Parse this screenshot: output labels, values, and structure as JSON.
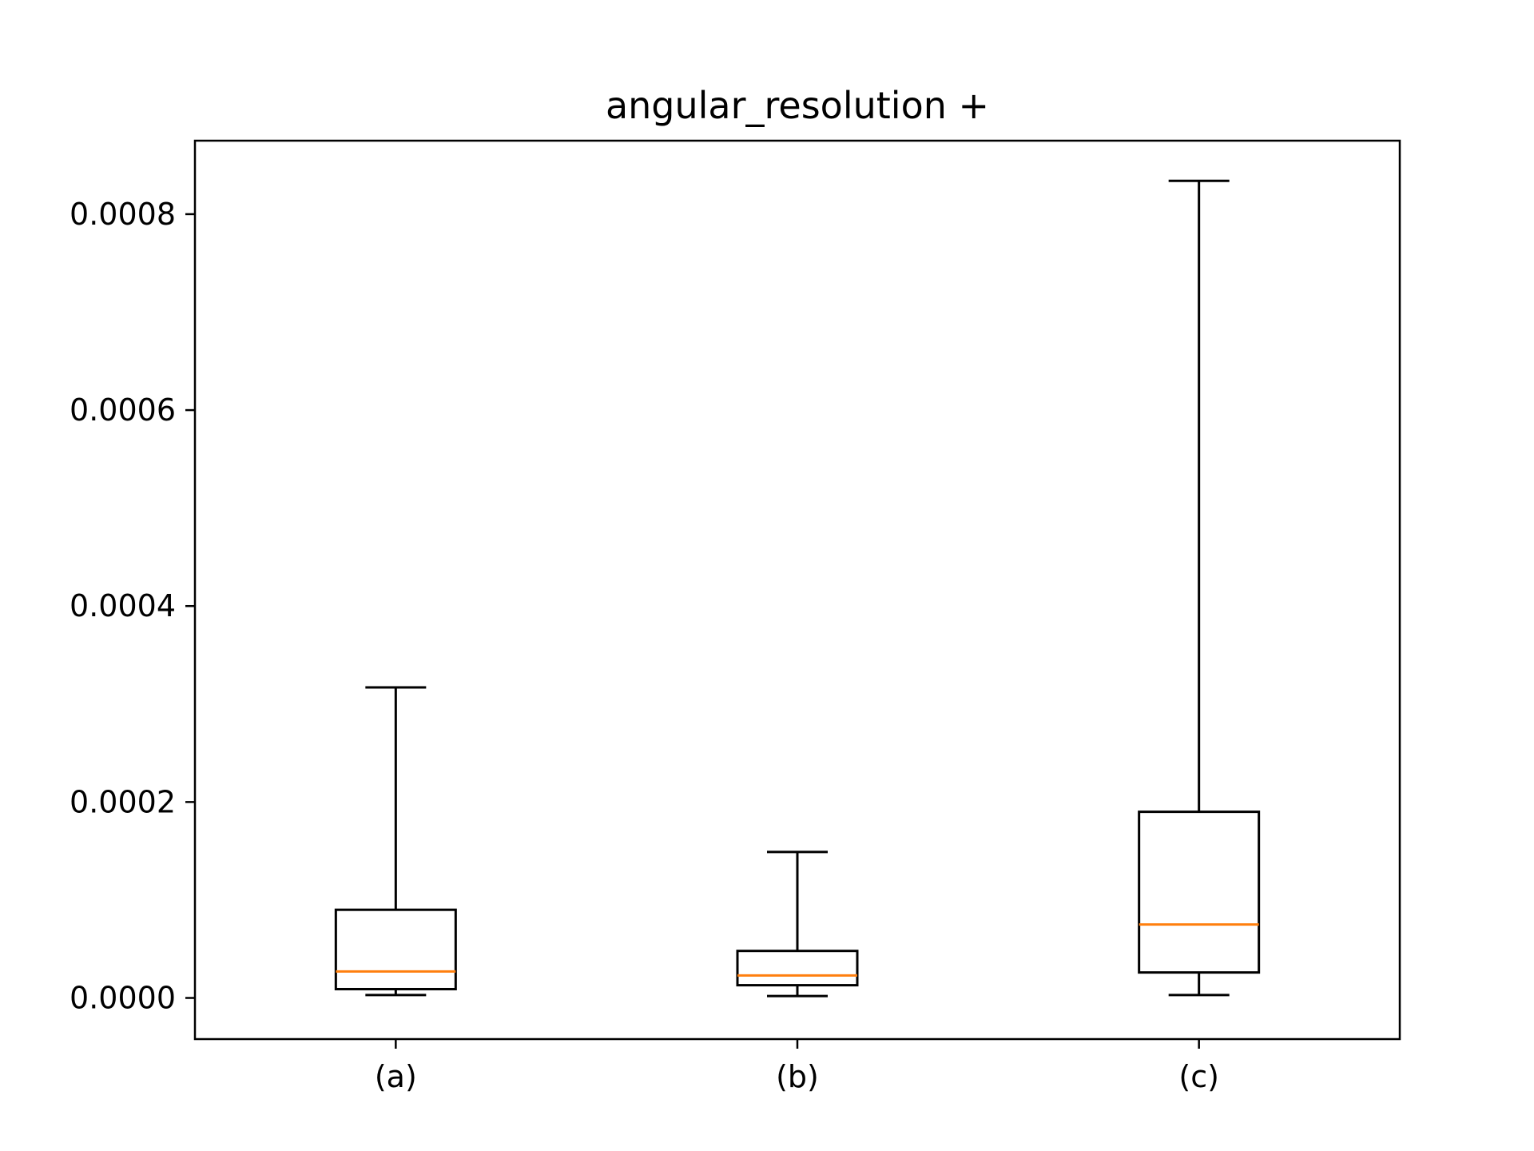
{
  "chart_data": {
    "type": "box",
    "title": "angular_resolution +",
    "xlabel": "",
    "ylabel": "",
    "categories": [
      "(a)",
      "(b)",
      "(c)"
    ],
    "boxes": [
      {
        "whisker_low": 3e-06,
        "q1": 9e-06,
        "median": 2.7e-05,
        "q3": 9e-05,
        "whisker_high": 0.000317
      },
      {
        "whisker_low": 2e-06,
        "q1": 1.3e-05,
        "median": 2.3e-05,
        "q3": 4.8e-05,
        "whisker_high": 0.000149
      },
      {
        "whisker_low": 3e-06,
        "q1": 2.6e-05,
        "median": 7.5e-05,
        "q3": 0.00019,
        "whisker_high": 0.000834
      }
    ],
    "yticks": [
      0.0,
      0.0002,
      0.0004,
      0.0006,
      0.0008
    ],
    "ytick_labels": [
      "0.0000",
      "0.0002",
      "0.0004",
      "0.0006",
      "0.0008"
    ],
    "ylim": [
      -4.2e-05,
      0.000875
    ],
    "grid": false,
    "colors": {
      "box": "#000000",
      "median": "#ff7f0e",
      "axes": "#000000"
    }
  }
}
